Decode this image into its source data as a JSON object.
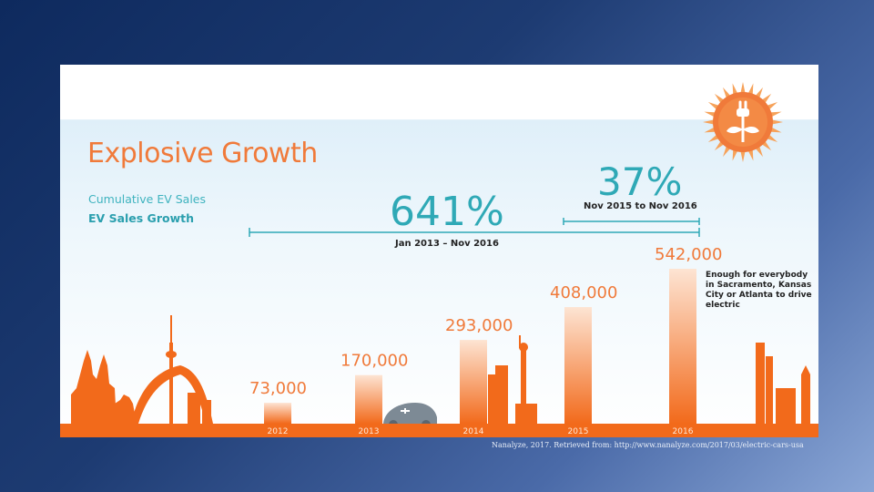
{
  "title": "Explosive Growth",
  "legend": {
    "cumulative": "Cumulative EV Sales",
    "growth": "EV Sales Growth"
  },
  "growth_callouts": {
    "total_pct": "641%",
    "total_range": "Jan 2013 – Nov 2016",
    "recent_pct": "37%",
    "recent_range": "Nov 2015 to Nov 2016"
  },
  "note": "Enough for everybody in Sacramento, Kansas City or Atlanta to drive electric",
  "source": "Nanalyze, 2017. Retrieved from: http://www.nanalyze.com/2017/03/electric-cars-usa",
  "colors": {
    "accent": "#f07a3a",
    "teal": "#2fa9b6",
    "ground": "#f26a1b"
  },
  "chart_data": {
    "type": "bar",
    "title": "Explosive Growth",
    "categories": [
      "2012",
      "2013",
      "2014",
      "2015",
      "2016"
    ],
    "values": [
      73000,
      170000,
      293000,
      408000,
      542000
    ],
    "value_labels": [
      "73,000",
      "170,000",
      "293,000",
      "408,000",
      "542,000"
    ],
    "ylim": [
      0,
      542000
    ],
    "grid": false
  }
}
